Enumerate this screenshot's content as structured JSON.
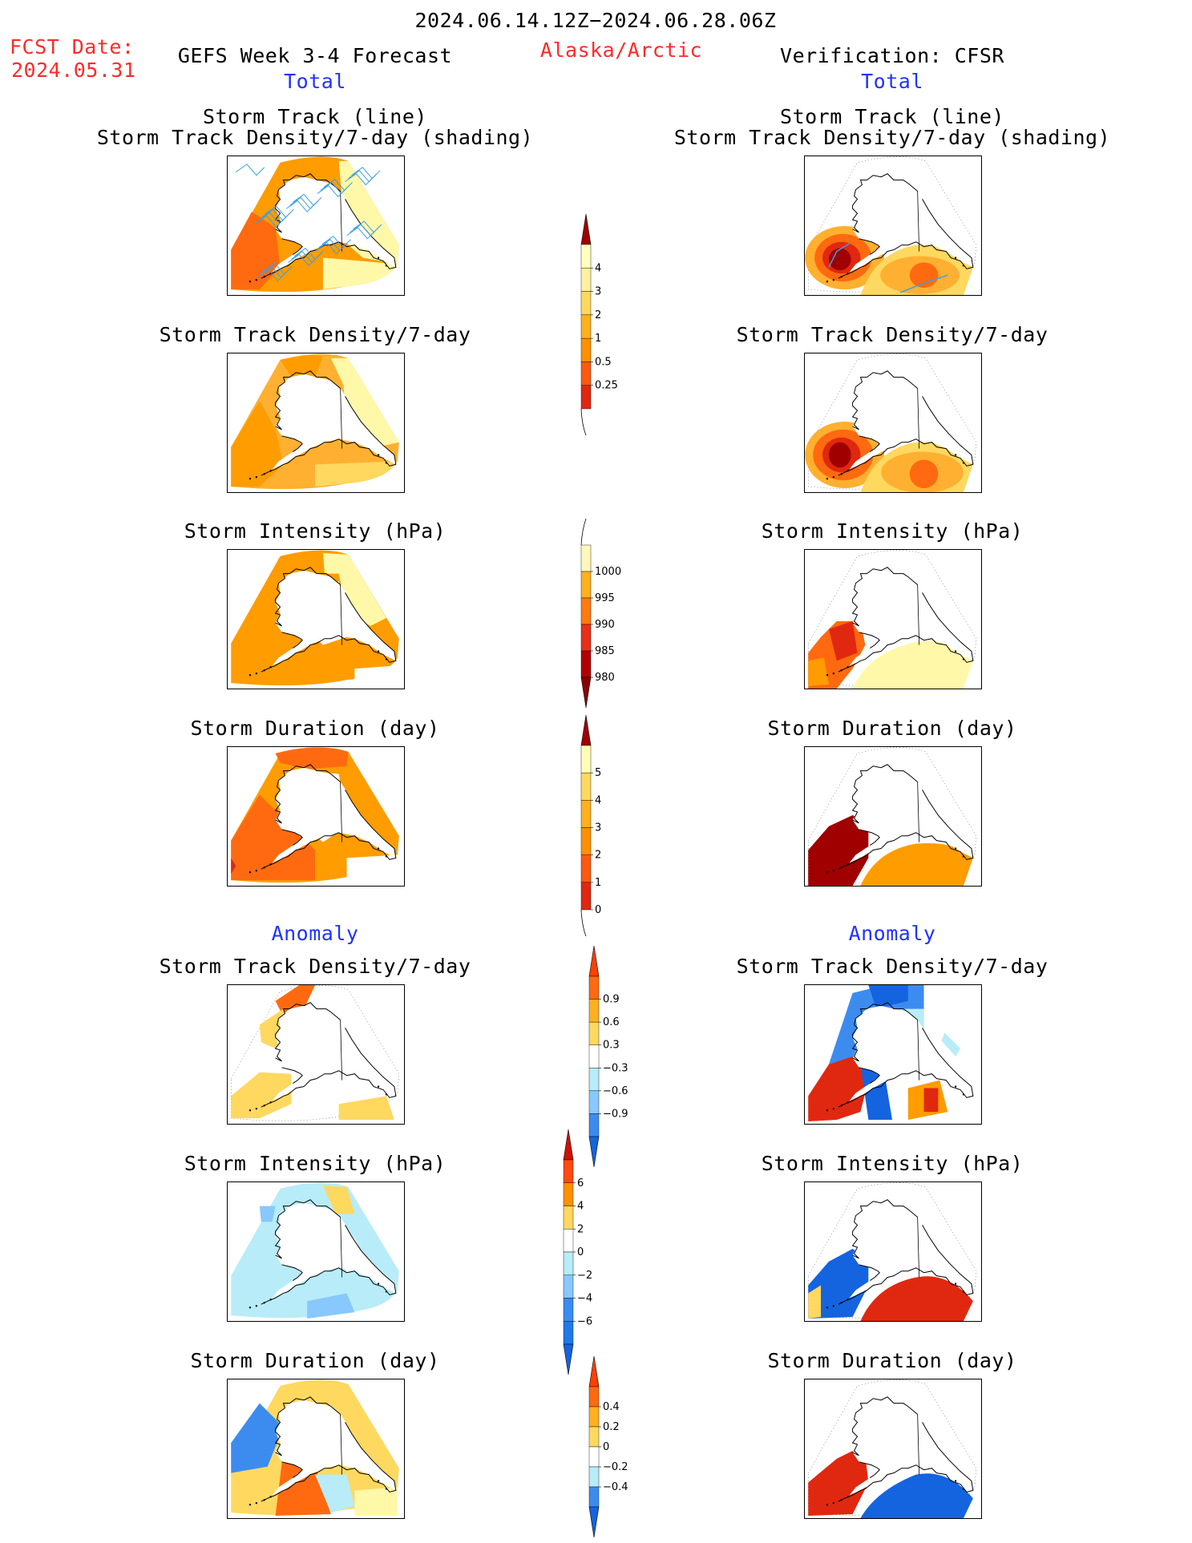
{
  "header": {
    "period": "2024.06.14.12Z−2024.06.28.06Z",
    "fcst_label": "FCST Date:",
    "fcst_date": "2024.05.31",
    "left_title": "GEFS Week 3-4 Forecast",
    "region": "Alaska/Arctic",
    "right_title": "Verification: CFSR",
    "left_section": "Total",
    "right_section": "Total"
  },
  "titles": {
    "track": [
      "Storm Track (line)",
      "Storm Track Density/7-day (shading)"
    ],
    "density": "Storm Track Density/7-day",
    "intensity": "Storm Intensity (hPa)",
    "duration": "Storm Duration (day)",
    "anomaly": "Anomaly"
  },
  "colorbars": {
    "density": [
      "4",
      "3",
      "2",
      "1",
      "0.5",
      "0.25"
    ],
    "intensity": [
      "1000",
      "995",
      "990",
      "985",
      "980"
    ],
    "duration": [
      "5",
      "4",
      "3",
      "2",
      "1",
      "0"
    ],
    "density_anom": [
      "0.9",
      "0.6",
      "0.3",
      "−0.3",
      "−0.6",
      "−0.9"
    ],
    "intensity_anom": [
      "6",
      "4",
      "2",
      "0",
      "−2",
      "−4",
      "−6"
    ],
    "duration_anom": [
      "0.4",
      "0.2",
      "0",
      "−0.2",
      "−0.4"
    ]
  },
  "colors": {
    "yellow_light": "#fff8a8",
    "yellow": "#ffd860",
    "orange_light": "#ffb030",
    "orange": "#ff9c00",
    "orange_dark": "#ff6a10",
    "red": "#e02810",
    "dark_red": "#a00000",
    "blue_light": "#b8ecf8",
    "blue_mid": "#88c8ff",
    "blue": "#3c8cf0",
    "blue_dark": "#1464e0",
    "track_line": "#3aa0e8"
  }
}
